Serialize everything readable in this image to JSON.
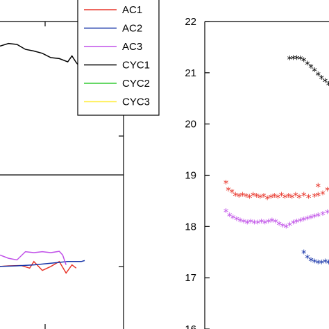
{
  "chart_data": [
    {
      "type": "line",
      "panel": "left (partially cropped)",
      "series": [
        {
          "name": "AC1",
          "color": "#e8372c",
          "points": [
            [
              0,
              0.19
            ],
            [
              0.1,
              0.192
            ],
            [
              0.25,
              0.193
            ],
            [
              0.35,
              0.185
            ],
            [
              0.4,
              0.205
            ],
            [
              0.5,
              0.178
            ],
            [
              0.6,
              0.19
            ],
            [
              0.7,
              0.205
            ],
            [
              0.78,
              0.17
            ],
            [
              0.85,
              0.195
            ],
            [
              0.9,
              0.185
            ]
          ]
        },
        {
          "name": "AC2",
          "color": "#1633a8",
          "points": [
            [
              0,
              0.19
            ],
            [
              0.2,
              0.192
            ],
            [
              0.4,
              0.195
            ],
            [
              0.6,
              0.2
            ],
            [
              0.8,
              0.205
            ],
            [
              0.96,
              0.205
            ],
            [
              1.0,
              0.208
            ]
          ]
        },
        {
          "name": "AC3",
          "color": "#c050e8",
          "points": [
            [
              0,
              0.225
            ],
            [
              0.1,
              0.215
            ],
            [
              0.2,
              0.21
            ],
            [
              0.3,
              0.235
            ],
            [
              0.4,
              0.232
            ],
            [
              0.5,
              0.235
            ],
            [
              0.6,
              0.232
            ],
            [
              0.7,
              0.236
            ],
            [
              0.74,
              0.225
            ],
            [
              0.78,
              0.195
            ]
          ]
        },
        {
          "name": "CYC1",
          "color": "#000000",
          "points": [
            [
              0,
              0.86
            ],
            [
              0.1,
              0.868
            ],
            [
              0.2,
              0.865
            ],
            [
              0.3,
              0.85
            ],
            [
              0.4,
              0.845
            ],
            [
              0.5,
              0.838
            ],
            [
              0.6,
              0.825
            ],
            [
              0.7,
              0.822
            ],
            [
              0.8,
              0.812
            ],
            [
              0.85,
              0.83
            ],
            [
              0.9,
              0.81
            ],
            [
              0.95,
              0.795
            ],
            [
              1.0,
              0.785
            ]
          ]
        }
      ],
      "legend": {
        "position": "top-right",
        "entries": [
          {
            "label": "AC1",
            "color": "#e8372c"
          },
          {
            "label": "AC2",
            "color": "#1633a8"
          },
          {
            "label": "AC3",
            "color": "#c050e8"
          },
          {
            "label": "CYC1",
            "color": "#000000"
          },
          {
            "label": "CYC2",
            "color": "#33cc33"
          },
          {
            "label": "CYC3",
            "color": "#ffee44"
          }
        ]
      }
    },
    {
      "type": "scatter",
      "panel": "right (partially cropped)",
      "marker": "*",
      "ylim": [
        16,
        22
      ],
      "yticks": [
        "16",
        "17",
        "18",
        "19",
        "20",
        "21",
        "22"
      ],
      "series": [
        {
          "color": "#000000",
          "points": [
            [
              0.72,
              21.28
            ],
            [
              0.75,
              21.29
            ],
            [
              0.78,
              21.29
            ],
            [
              0.81,
              21.28
            ],
            [
              0.84,
              21.25
            ],
            [
              0.87,
              21.18
            ],
            [
              0.9,
              21.12
            ],
            [
              0.93,
              21.05
            ],
            [
              0.96,
              20.97
            ],
            [
              0.99,
              20.9
            ],
            [
              1.02,
              20.84
            ],
            [
              1.05,
              20.78
            ],
            [
              1.08,
              20.72
            ],
            [
              1.11,
              20.66
            ],
            [
              1.14,
              20.62
            ]
          ]
        },
        {
          "color": "#e8372c",
          "points": [
            [
              0.18,
              18.86
            ],
            [
              0.2,
              18.72
            ],
            [
              0.23,
              18.68
            ],
            [
              0.26,
              18.62
            ],
            [
              0.29,
              18.6
            ],
            [
              0.32,
              18.62
            ],
            [
              0.35,
              18.6
            ],
            [
              0.38,
              18.58
            ],
            [
              0.41,
              18.62
            ],
            [
              0.44,
              18.6
            ],
            [
              0.47,
              18.58
            ],
            [
              0.5,
              18.6
            ],
            [
              0.53,
              18.55
            ],
            [
              0.56,
              18.58
            ],
            [
              0.59,
              18.6
            ],
            [
              0.62,
              18.58
            ],
            [
              0.65,
              18.62
            ],
            [
              0.68,
              18.58
            ],
            [
              0.71,
              18.6
            ],
            [
              0.74,
              18.58
            ],
            [
              0.77,
              18.62
            ],
            [
              0.8,
              18.58
            ],
            [
              0.84,
              18.62
            ],
            [
              0.88,
              18.58
            ],
            [
              0.93,
              18.6
            ],
            [
              0.96,
              18.62
            ],
            [
              1.0,
              18.65
            ],
            [
              1.04,
              18.72
            ],
            [
              1.08,
              18.7
            ],
            [
              1.12,
              18.75
            ],
            [
              1.16,
              18.7
            ],
            [
              0.96,
              18.8
            ]
          ]
        },
        {
          "color": "#c050e8",
          "points": [
            [
              0.18,
              18.3
            ],
            [
              0.21,
              18.22
            ],
            [
              0.24,
              18.18
            ],
            [
              0.27,
              18.15
            ],
            [
              0.3,
              18.12
            ],
            [
              0.33,
              18.1
            ],
            [
              0.36,
              18.08
            ],
            [
              0.39,
              18.1
            ],
            [
              0.42,
              18.08
            ],
            [
              0.45,
              18.08
            ],
            [
              0.48,
              18.1
            ],
            [
              0.51,
              18.08
            ],
            [
              0.54,
              18.1
            ],
            [
              0.57,
              18.12
            ],
            [
              0.6,
              18.1
            ],
            [
              0.63,
              18.05
            ],
            [
              0.66,
              18.02
            ],
            [
              0.69,
              18.0
            ],
            [
              0.72,
              18.04
            ],
            [
              0.75,
              18.08
            ],
            [
              0.78,
              18.1
            ],
            [
              0.81,
              18.12
            ],
            [
              0.84,
              18.14
            ],
            [
              0.87,
              18.16
            ],
            [
              0.9,
              18.18
            ],
            [
              0.93,
              18.2
            ],
            [
              0.96,
              18.22
            ],
            [
              1.0,
              18.25
            ],
            [
              1.04,
              18.28
            ],
            [
              1.08,
              18.3
            ],
            [
              1.12,
              18.32
            ],
            [
              1.15,
              18.35
            ]
          ]
        },
        {
          "color": "#1633a8",
          "points": [
            [
              0.84,
              17.5
            ],
            [
              0.87,
              17.4
            ],
            [
              0.9,
              17.35
            ],
            [
              0.93,
              17.32
            ],
            [
              0.96,
              17.3
            ],
            [
              0.99,
              17.3
            ],
            [
              1.02,
              17.32
            ],
            [
              1.05,
              17.3
            ],
            [
              1.08,
              17.32
            ]
          ]
        }
      ]
    }
  ]
}
